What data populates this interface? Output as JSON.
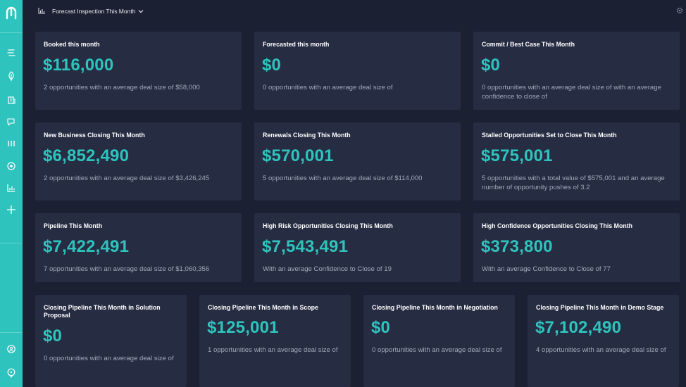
{
  "header": {
    "title": "Forecast Inspection This Month"
  },
  "icons": {
    "logo": "logo-icon",
    "chart": "bar-chart-icon",
    "chevron": "chevron-down-icon",
    "settings": "gear-icon"
  },
  "colors": {
    "accent": "#2ec4bd",
    "background": "#1b2033",
    "card": "#262c42"
  },
  "sidebar": {
    "items": [
      "feed-icon",
      "leaf-icon",
      "building-icon",
      "chat-icon",
      "columns-icon",
      "target-icon",
      "chart-icon",
      "plus-icon",
      "user-icon",
      "support-icon"
    ]
  },
  "cards": [
    {
      "title": "Booked this month",
      "value": "$116,000",
      "desc": "2 opportunities with an average deal size of $58,000"
    },
    {
      "title": "Forecasted this month",
      "value": "$0",
      "desc": "0 opportunities with an average deal size of"
    },
    {
      "title": "Commit / Best Case This Month",
      "value": "$0",
      "desc": "0 opportunities with an average deal size of with an average confidence to close of"
    },
    {
      "title": "New Business Closing This Month",
      "value": "$6,852,490",
      "desc": "2 opportunities with an average deal size of $3,426,245"
    },
    {
      "title": "Renewals Closing This Month",
      "value": "$570,001",
      "desc": "5 opportunities with an average deal size of $114,000"
    },
    {
      "title": "Stalled Opportunities Set to Close This Month",
      "value": "$575,001",
      "desc": "5 opportunities with a total value of $575,001 and an average number of opportunity pushes of 3.2"
    },
    {
      "title": "Pipeline This Month",
      "value": "$7,422,491",
      "desc": "7 opportunities with an average deal size of $1,060,356"
    },
    {
      "title": "High Risk Opportunities Closing This Month",
      "value": "$7,543,491",
      "desc": "With an average Confidence to Close of 19"
    },
    {
      "title": "High Confidence Opportunities Closing This Month",
      "value": "$373,800",
      "desc": "With an average Confidence to Close of 77"
    },
    {
      "title": "Closing Pipeline This Month in Solution Proposal",
      "value": "$0",
      "desc": "0 opportunities with an average deal size of"
    },
    {
      "title": "Closing Pipeline This Month in Scope",
      "value": "$125,001",
      "desc": "1 opportunities with an average deal size of"
    },
    {
      "title": "Closing Pipeline This Month in Negotiation",
      "value": "$0",
      "desc": "0 opportunities with an average deal size of"
    },
    {
      "title": "Closing Pipeline This Month in Demo Stage",
      "value": "$7,102,490",
      "desc": "4 opportunities with an average deal size of"
    }
  ]
}
